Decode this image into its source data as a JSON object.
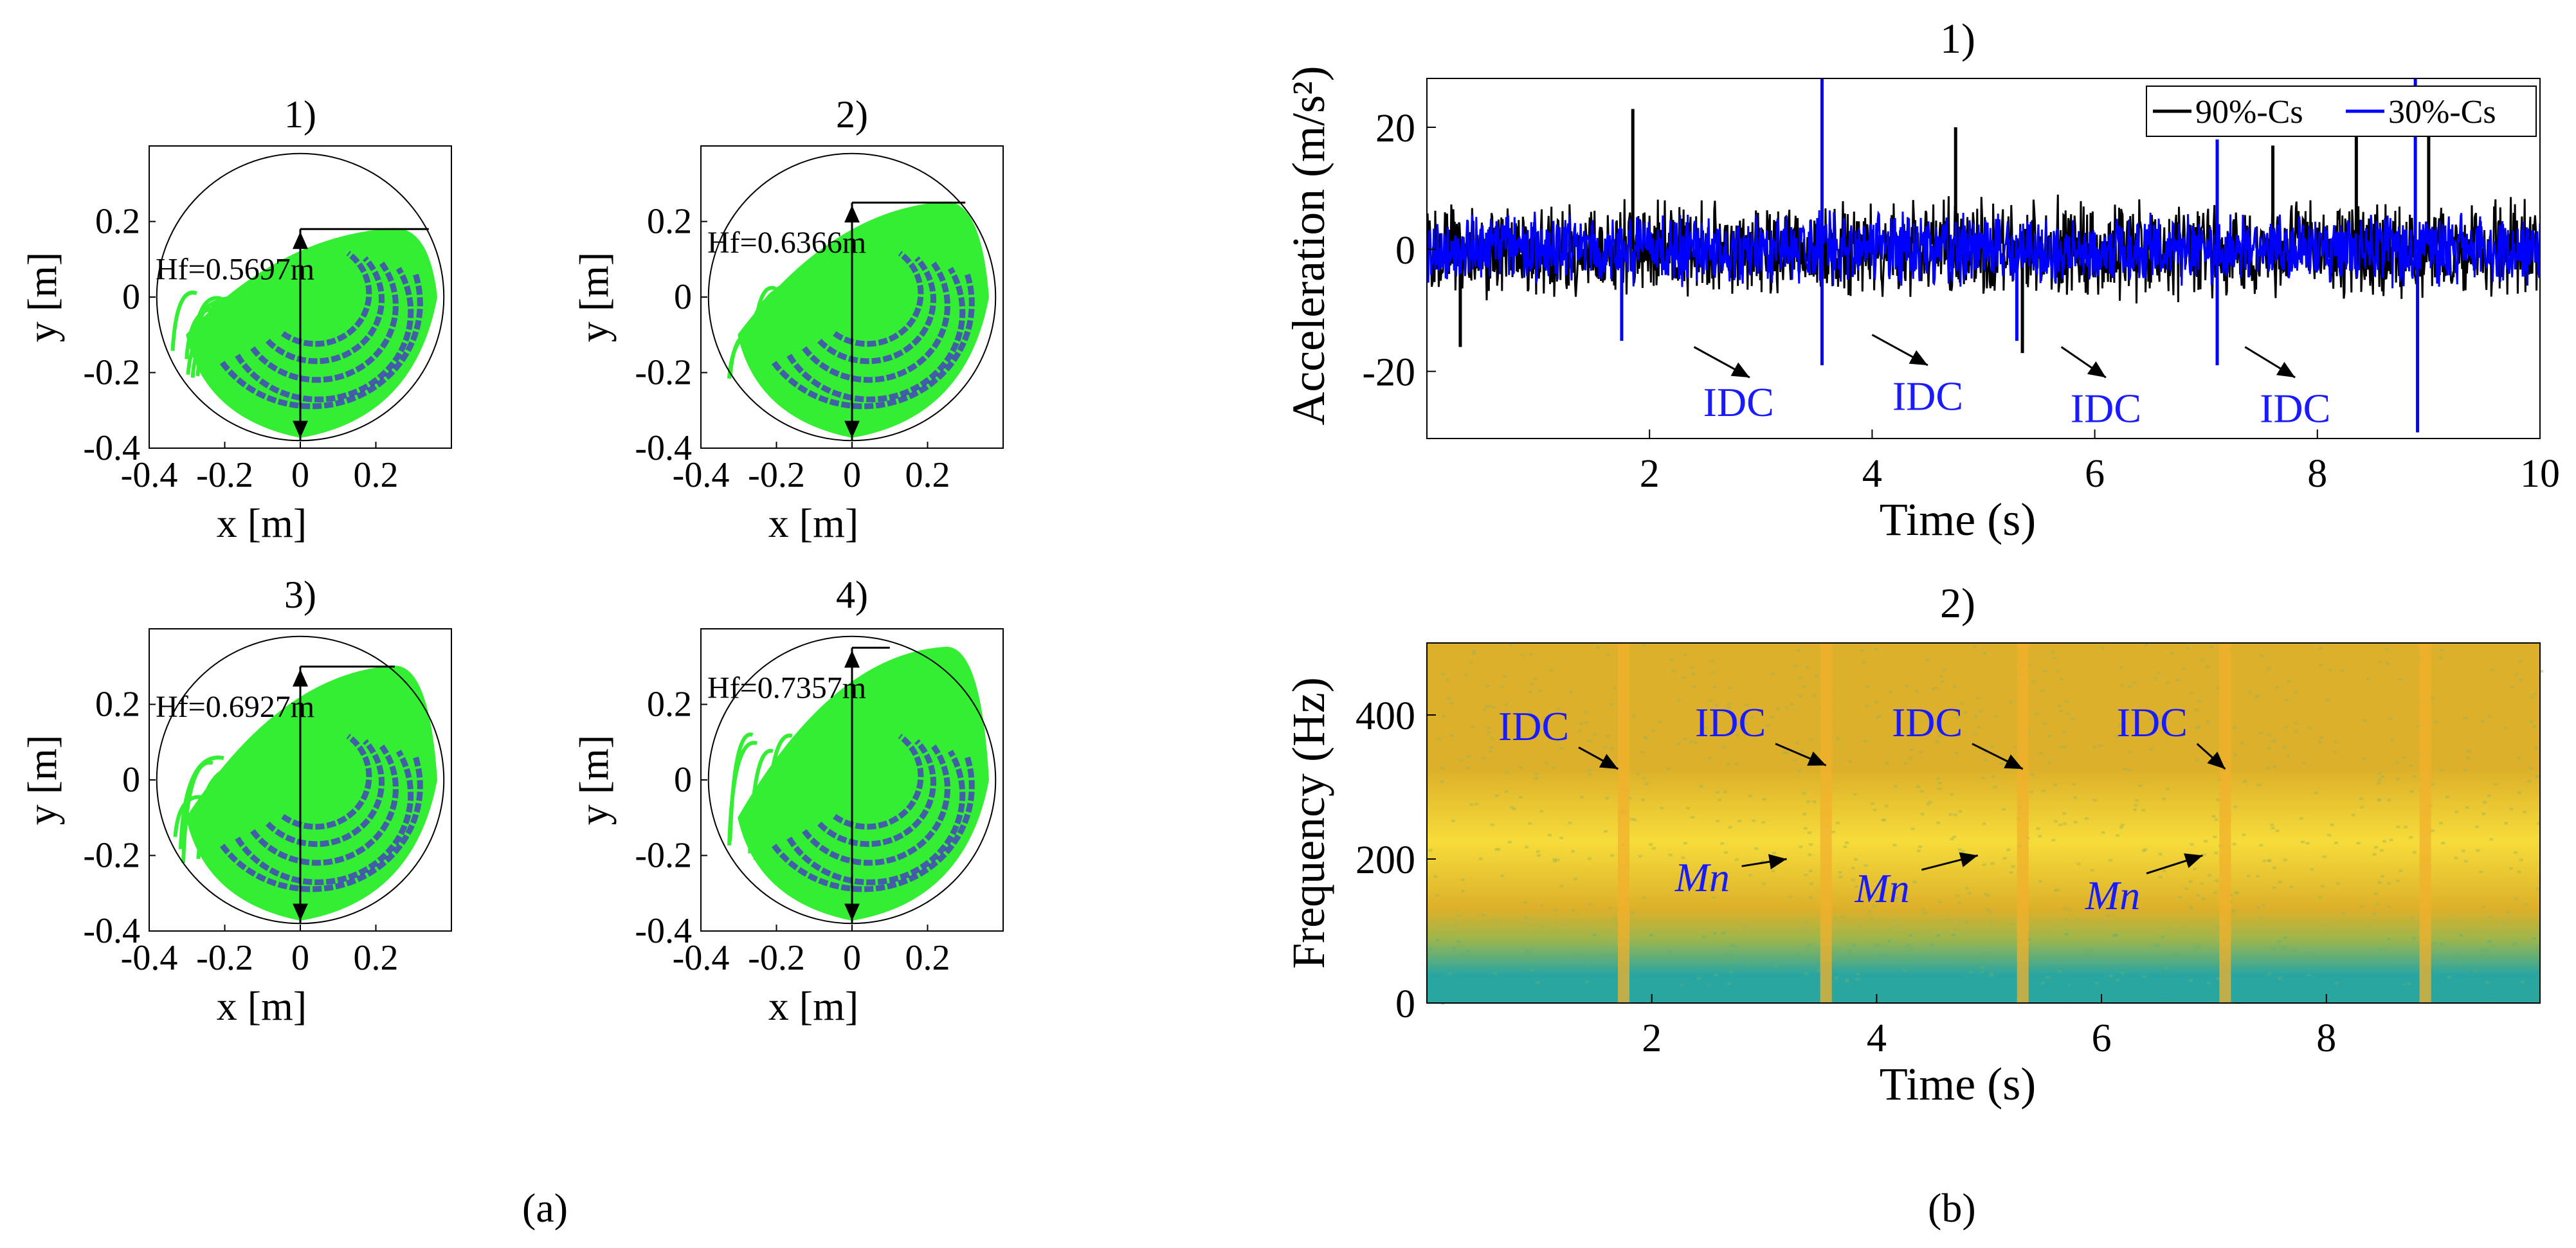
{
  "captions": {
    "a": "(a)",
    "b": "(b)"
  },
  "chart_data": [
    {
      "type": "scatter",
      "panel_group": "a",
      "title": "1)",
      "xlabel": "x [m]",
      "ylabel": "y [m]",
      "xlim": [
        -0.4,
        0.4
      ],
      "ylim": [
        -0.4,
        0.4
      ],
      "xticks": [
        -0.4,
        -0.2,
        0,
        0.2
      ],
      "xtick_labels": [
        "-0.4",
        "-0.2",
        "0",
        "0.2"
      ],
      "yticks": [
        -0.4,
        -0.2,
        0,
        0.2
      ],
      "ytick_labels": [
        "-0.4",
        "-0.2",
        "0",
        "0.2"
      ],
      "circle_radius": 0.38,
      "hf_label": "Hf=0.5697m",
      "hf_top": 0.18,
      "hf_bottom": -0.38,
      "hf_line_x_end": 0.34,
      "series": [
        {
          "name": "trajectory",
          "color": "#33ee33"
        },
        {
          "name": "particles",
          "color": "#4444bb"
        }
      ]
    },
    {
      "type": "scatter",
      "panel_group": "a",
      "title": "2)",
      "xlabel": "x [m]",
      "ylabel": "y [m]",
      "xlim": [
        -0.4,
        0.4
      ],
      "ylim": [
        -0.4,
        0.4
      ],
      "xticks": [
        -0.4,
        -0.2,
        0,
        0.2
      ],
      "xtick_labels": [
        "-0.4",
        "-0.2",
        "0",
        "0.2"
      ],
      "yticks": [
        -0.4,
        -0.2,
        0,
        0.2
      ],
      "ytick_labels": [
        "-0.4",
        "-0.2",
        "0",
        "0.2"
      ],
      "circle_radius": 0.38,
      "hf_label": "Hf=0.6366m",
      "hf_top": 0.25,
      "hf_bottom": -0.38,
      "hf_line_x_end": 0.3,
      "series": [
        {
          "name": "trajectory",
          "color": "#33ee33"
        },
        {
          "name": "particles",
          "color": "#4444bb"
        }
      ]
    },
    {
      "type": "scatter",
      "panel_group": "a",
      "title": "3)",
      "xlabel": "x [m]",
      "ylabel": "y [m]",
      "xlim": [
        -0.4,
        0.4
      ],
      "ylim": [
        -0.4,
        0.4
      ],
      "xticks": [
        -0.4,
        -0.2,
        0,
        0.2
      ],
      "xtick_labels": [
        "-0.4",
        "-0.2",
        "0",
        "0.2"
      ],
      "yticks": [
        -0.4,
        -0.2,
        0,
        0.2
      ],
      "ytick_labels": [
        "-0.4",
        "-0.2",
        "0",
        "0.2"
      ],
      "circle_radius": 0.38,
      "hf_label": "Hf=0.6927m",
      "hf_top": 0.3,
      "hf_bottom": -0.38,
      "hf_line_x_end": 0.25,
      "series": [
        {
          "name": "trajectory",
          "color": "#33ee33"
        },
        {
          "name": "particles",
          "color": "#4444bb"
        }
      ]
    },
    {
      "type": "scatter",
      "panel_group": "a",
      "title": "4)",
      "xlabel": "x [m]",
      "ylabel": "y [m]",
      "xlim": [
        -0.4,
        0.4
      ],
      "ylim": [
        -0.4,
        0.4
      ],
      "xticks": [
        -0.4,
        -0.2,
        0,
        0.2
      ],
      "xtick_labels": [
        "-0.4",
        "-0.2",
        "0",
        "0.2"
      ],
      "yticks": [
        -0.4,
        -0.2,
        0,
        0.2
      ],
      "ytick_labels": [
        "-0.4",
        "-0.2",
        "0",
        "0.2"
      ],
      "circle_radius": 0.38,
      "hf_label": "Hf=0.7357m",
      "hf_top": 0.35,
      "hf_bottom": -0.38,
      "hf_line_x_end": 0.1,
      "series": [
        {
          "name": "trajectory",
          "color": "#33ee33"
        },
        {
          "name": "particles",
          "color": "#4444bb"
        }
      ]
    },
    {
      "type": "line",
      "panel_group": "b",
      "title": "1)",
      "xlabel": "Time (s)",
      "ylabel": "Acceleration (m/s²)",
      "xlim": [
        0,
        10
      ],
      "ylim": [
        -31,
        28
      ],
      "xticks": [
        2,
        4,
        6,
        8,
        10
      ],
      "xtick_labels": [
        "2",
        "4",
        "6",
        "8",
        "10"
      ],
      "yticks": [
        -20,
        0,
        20
      ],
      "ytick_labels": [
        "-20",
        "0",
        "20"
      ],
      "legend": {
        "placement": "top-right",
        "entries": [
          "90%-Cs",
          "30%-Cs"
        ]
      },
      "series": [
        {
          "name": "90%-Cs",
          "color": "#000000",
          "amplitude": 7,
          "spikes": [
            [
              1.85,
              23
            ],
            [
              4.75,
              20
            ],
            [
              5.35,
              -17
            ],
            [
              7.6,
              17
            ],
            [
              8.35,
              20
            ],
            [
              9.0,
              23
            ],
            [
              0.3,
              -16
            ]
          ]
        },
        {
          "name": "30%-Cs",
          "color": "#0000ff",
          "amplitude": 5,
          "spikes": [
            [
              1.75,
              -15
            ],
            [
              3.55,
              28
            ],
            [
              3.55,
              -19
            ],
            [
              5.3,
              -15
            ],
            [
              7.1,
              18
            ],
            [
              7.1,
              -19
            ],
            [
              8.88,
              28
            ],
            [
              8.9,
              -30
            ]
          ]
        }
      ],
      "annotations": [
        {
          "text": "IDC",
          "x": 2.8,
          "y": -25,
          "arrow_from": [
            2.4,
            -16
          ],
          "arrow_to": [
            2.9,
            -21
          ]
        },
        {
          "text": "IDC",
          "x": 4.5,
          "y": -24,
          "arrow_from": [
            4.0,
            -14
          ],
          "arrow_to": [
            4.5,
            -19
          ]
        },
        {
          "text": "IDC",
          "x": 6.1,
          "y": -26,
          "arrow_from": [
            5.7,
            -16
          ],
          "arrow_to": [
            6.1,
            -21
          ]
        },
        {
          "text": "IDC",
          "x": 7.8,
          "y": -26,
          "arrow_from": [
            7.35,
            -16
          ],
          "arrow_to": [
            7.8,
            -21
          ]
        }
      ]
    },
    {
      "type": "heatmap",
      "panel_group": "b",
      "title": "2)",
      "xlabel": "Time (s)",
      "ylabel": "Frequency (Hz)",
      "xlim": [
        0,
        9.9
      ],
      "ylim": [
        0,
        500
      ],
      "xticks": [
        2,
        4,
        6,
        8
      ],
      "xtick_labels": [
        "2",
        "4",
        "6",
        "8"
      ],
      "yticks": [
        0,
        200,
        400
      ],
      "ytick_labels": [
        "0",
        "200",
        "400"
      ],
      "bright_band_times": [
        1.75,
        3.55,
        5.3,
        7.1,
        8.88
      ],
      "colors": {
        "low": "#2aa6a0",
        "mid": "#dcb02a",
        "high": "#f6dc3a"
      },
      "annotations": [
        {
          "text": "IDC",
          "x": 0.95,
          "y": 385,
          "arrow_from": [
            1.35,
            355
          ],
          "arrow_to": [
            1.7,
            325
          ]
        },
        {
          "text": "IDC",
          "x": 2.7,
          "y": 390,
          "arrow_from": [
            3.1,
            360
          ],
          "arrow_to": [
            3.55,
            330
          ]
        },
        {
          "text": "IDC",
          "x": 4.45,
          "y": 390,
          "arrow_from": [
            4.85,
            360
          ],
          "arrow_to": [
            5.3,
            325
          ]
        },
        {
          "text": "IDC",
          "x": 6.45,
          "y": 390,
          "arrow_from": [
            6.85,
            360
          ],
          "arrow_to": [
            7.1,
            325
          ]
        },
        {
          "text": "Mn",
          "x": 2.45,
          "y": 175,
          "arrow_from": [
            2.8,
            190
          ],
          "arrow_to": [
            3.2,
            200
          ]
        },
        {
          "text": "Mn",
          "x": 4.05,
          "y": 160,
          "arrow_from": [
            4.4,
            185
          ],
          "arrow_to": [
            4.9,
            205
          ]
        },
        {
          "text": "Mn",
          "x": 6.1,
          "y": 150,
          "arrow_from": [
            6.4,
            180
          ],
          "arrow_to": [
            6.9,
            205
          ]
        }
      ]
    }
  ]
}
